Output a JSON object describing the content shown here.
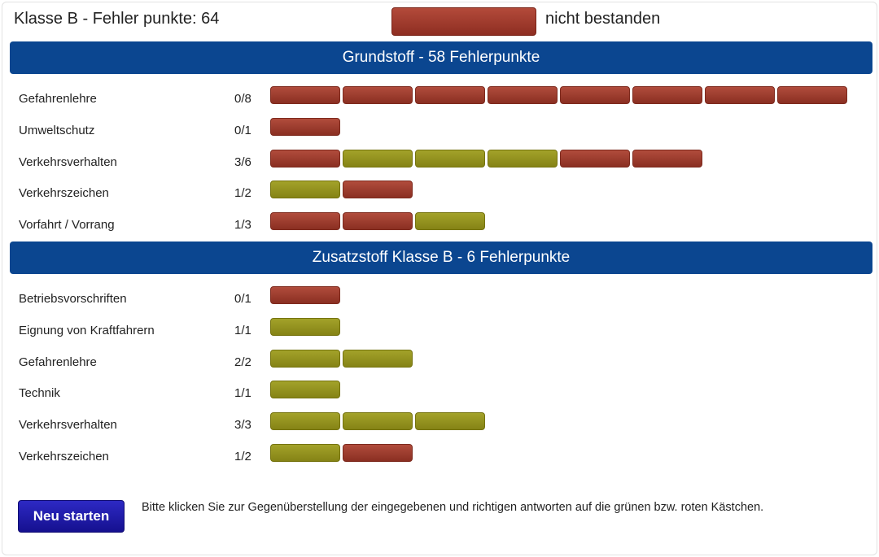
{
  "header": {
    "title": "Klasse B - Fehler punkte: 64",
    "result_label": "nicht bestanden",
    "result_color": "#a03c2e"
  },
  "colors": {
    "wrong": "#a03c2e",
    "correct": "#959420",
    "section_bg": "#0b4690",
    "button_bg": "#1f1baa"
  },
  "sections": [
    {
      "title": "Grundstoff - 58 Fehlerpunkte",
      "rows": [
        {
          "label": "Gefahrenlehre",
          "score": "0/8",
          "boxes": [
            "wrong",
            "wrong",
            "wrong",
            "wrong",
            "wrong",
            "wrong",
            "wrong",
            "wrong"
          ]
        },
        {
          "label": "Umweltschutz",
          "score": "0/1",
          "boxes": [
            "wrong"
          ]
        },
        {
          "label": "Verkehrsverhalten",
          "score": "3/6",
          "boxes": [
            "wrong",
            "correct",
            "correct",
            "correct",
            "wrong",
            "wrong"
          ]
        },
        {
          "label": "Verkehrszeichen",
          "score": "1/2",
          "boxes": [
            "correct",
            "wrong"
          ]
        },
        {
          "label": "Vorfahrt / Vorrang",
          "score": "1/3",
          "boxes": [
            "wrong",
            "wrong",
            "correct"
          ]
        }
      ]
    },
    {
      "title": "Zusatzstoff Klasse B - 6 Fehlerpunkte",
      "rows": [
        {
          "label": "Betriebsvorschriften",
          "score": "0/1",
          "boxes": [
            "wrong"
          ]
        },
        {
          "label": "Eignung von Kraftfahrern",
          "score": "1/1",
          "boxes": [
            "correct"
          ]
        },
        {
          "label": "Gefahrenlehre",
          "score": "2/2",
          "boxes": [
            "correct",
            "correct"
          ]
        },
        {
          "label": "Technik",
          "score": "1/1",
          "boxes": [
            "correct"
          ]
        },
        {
          "label": "Verkehrsverhalten",
          "score": "3/3",
          "boxes": [
            "correct",
            "correct",
            "correct"
          ]
        },
        {
          "label": "Verkehrszeichen",
          "score": "1/2",
          "boxes": [
            "correct",
            "wrong"
          ]
        }
      ]
    }
  ],
  "footer": {
    "restart_label": "Neu starten",
    "hint": "Bitte klicken Sie zur Gegenüberstellung der eingegebenen und richtigen antworten auf die grünen bzw. roten Kästchen."
  }
}
